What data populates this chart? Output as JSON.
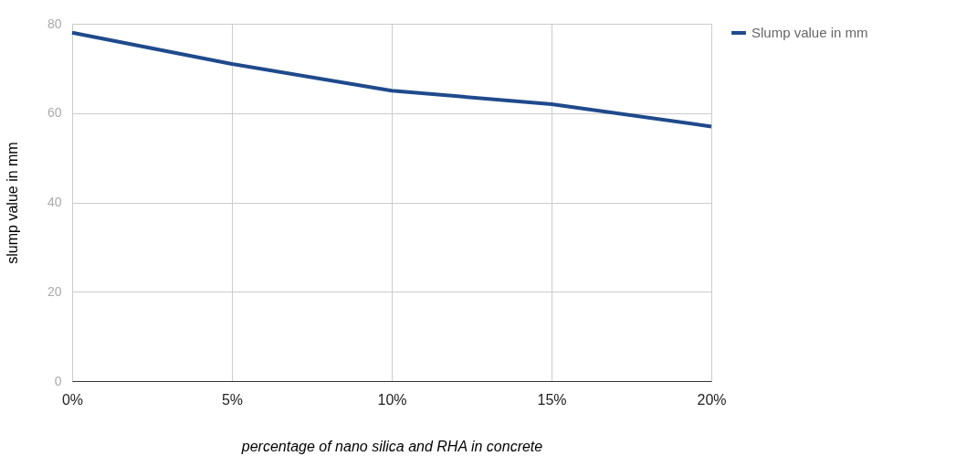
{
  "chart_data": {
    "type": "line",
    "xlabel": "percentage of nano silica and RHA in concrete",
    "ylabel": "slump value in mm",
    "categories": [
      "0%",
      "5%",
      "10%",
      "15%",
      "20%"
    ],
    "series": [
      {
        "name": "Slump value in mm",
        "color": "#1f4a8c",
        "values": [
          78,
          71,
          65,
          62,
          57
        ]
      }
    ],
    "ylim": [
      0,
      80
    ],
    "yticks": [
      0,
      20,
      40,
      60,
      80
    ],
    "grid": true,
    "legend": "top right",
    "marker": "none",
    "line_style": "solid"
  }
}
